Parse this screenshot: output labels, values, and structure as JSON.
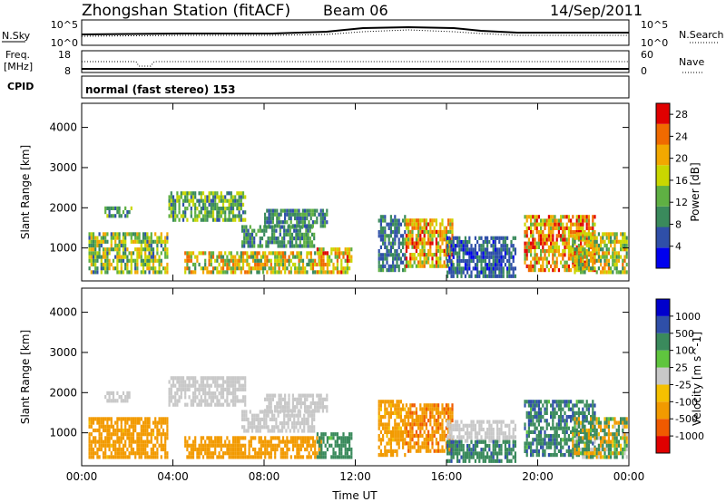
{
  "header": {
    "station": "Zhongshan Station (fitACF)",
    "beam": "Beam 06",
    "date": "14/Sep/2011"
  },
  "aux_panels": {
    "nsky_label": "N.Sky",
    "nsearch_label": "N.Search",
    "nsky_ticks": [
      "10^5",
      "10^0"
    ],
    "nsearch_ticks": [
      "10^5",
      "10^0"
    ],
    "freq_label": "Freq.",
    "freq_unit": "[MHz]",
    "freq_ticks": [
      "18",
      "8"
    ],
    "nave_label": "Nave",
    "nave_ticks": [
      "60",
      "0"
    ],
    "cpid_label": "CPID",
    "cpid_text": "normal (fast stereo) 153"
  },
  "colors": {
    "power_scale": [
      "#0000ee",
      "#2f4fa8",
      "#3a8a5c",
      "#5fb043",
      "#c9d700",
      "#f2a800",
      "#f06a00",
      "#e00000"
    ],
    "velocity_scale": [
      "#e00000",
      "#f05a00",
      "#f29a00",
      "#f5c000",
      "#c8c8c8",
      "#5fc53e",
      "#3a8a5c",
      "#2f4fa8",
      "#0000cc"
    ]
  },
  "chart_data": [
    {
      "type": "heatmap",
      "name": "power",
      "ylabel": "Slant Range [km]",
      "yticks": [
        1000,
        2000,
        3000,
        4000
      ],
      "ylim": [
        180,
        4600
      ],
      "xticks": [
        "00:00",
        "04:00",
        "08:00",
        "12:00",
        "16:00",
        "20:00",
        "00:00"
      ],
      "xlim_hours": [
        0,
        24
      ],
      "colorbar_label": "Power [dB]",
      "colorbar_ticks": [
        4,
        8,
        12,
        16,
        20,
        24,
        28
      ],
      "colorbar_range": [
        0,
        30
      ],
      "regions": [
        {
          "h0": 0.3,
          "h1": 3.8,
          "r0": 350,
          "r1": 1350,
          "v0": 6,
          "v1": 22
        },
        {
          "h0": 1.0,
          "h1": 2.2,
          "r0": 1750,
          "r1": 1980,
          "v0": 6,
          "v1": 16
        },
        {
          "h0": 3.8,
          "h1": 7.2,
          "r0": 1650,
          "r1": 2350,
          "v0": 6,
          "v1": 18
        },
        {
          "h0": 4.5,
          "h1": 10.5,
          "r0": 350,
          "r1": 900,
          "v0": 8,
          "v1": 26
        },
        {
          "h0": 7.0,
          "h1": 10.2,
          "r0": 1000,
          "r1": 1500,
          "v0": 5,
          "v1": 14
        },
        {
          "h0": 8.0,
          "h1": 10.8,
          "r0": 1500,
          "r1": 1950,
          "v0": 5,
          "v1": 14
        },
        {
          "h0": 10.3,
          "h1": 11.8,
          "r0": 350,
          "r1": 950,
          "v0": 12,
          "v1": 28
        },
        {
          "h0": 13.0,
          "h1": 14.2,
          "r0": 400,
          "r1": 1800,
          "v0": 4,
          "v1": 12
        },
        {
          "h0": 14.2,
          "h1": 16.3,
          "r0": 500,
          "r1": 1650,
          "v0": 12,
          "v1": 28
        },
        {
          "h0": 16.0,
          "h1": 19.0,
          "r0": 250,
          "r1": 1250,
          "v0": 3,
          "v1": 10
        },
        {
          "h0": 19.4,
          "h1": 22.5,
          "r0": 400,
          "r1": 1750,
          "v0": 12,
          "v1": 30
        },
        {
          "h0": 21.5,
          "h1": 23.9,
          "r0": 350,
          "r1": 1350,
          "v0": 8,
          "v1": 24
        }
      ]
    },
    {
      "type": "heatmap",
      "name": "velocity",
      "ylabel": "Slant Range [km]",
      "yticks": [
        1000,
        2000,
        3000,
        4000
      ],
      "ylim": [
        180,
        4600
      ],
      "xticks": [
        "00:00",
        "04:00",
        "08:00",
        "12:00",
        "16:00",
        "20:00",
        "00:00"
      ],
      "xlim_hours": [
        0,
        24
      ],
      "xlabel": "Time UT",
      "colorbar_label": "Velocity [m s^-1]",
      "colorbar_ticks": [
        "1000",
        "500",
        "100",
        "25",
        "-25",
        "-100",
        "-500",
        "-1000"
      ],
      "colorbar_range": [
        -1200,
        1200
      ],
      "regions": [
        {
          "h0": 0.3,
          "h1": 3.8,
          "r0": 350,
          "r1": 1350,
          "v0": -450,
          "v1": -90
        },
        {
          "h0": 1.0,
          "h1": 2.2,
          "r0": 1750,
          "r1": 1980,
          "v0": -10,
          "v1": 10
        },
        {
          "h0": 3.8,
          "h1": 7.2,
          "r0": 1650,
          "r1": 2350,
          "v0": -10,
          "v1": 10
        },
        {
          "h0": 4.5,
          "h1": 10.5,
          "r0": 350,
          "r1": 900,
          "v0": -450,
          "v1": -100
        },
        {
          "h0": 7.0,
          "h1": 10.2,
          "r0": 1000,
          "r1": 1500,
          "v0": -10,
          "v1": 10
        },
        {
          "h0": 8.0,
          "h1": 10.8,
          "r0": 1500,
          "r1": 1950,
          "v0": -10,
          "v1": 10
        },
        {
          "h0": 10.3,
          "h1": 11.8,
          "r0": 350,
          "r1": 950,
          "v0": 80,
          "v1": 450
        },
        {
          "h0": 13.0,
          "h1": 14.2,
          "r0": 400,
          "r1": 1800,
          "v0": -300,
          "v1": -80
        },
        {
          "h0": 14.2,
          "h1": 16.3,
          "r0": 500,
          "r1": 1650,
          "v0": -650,
          "v1": -100
        },
        {
          "h0": 16.0,
          "h1": 19.0,
          "r0": 750,
          "r1": 1250,
          "v0": -10,
          "v1": 10
        },
        {
          "h0": 16.0,
          "h1": 19.0,
          "r0": 250,
          "r1": 750,
          "v0": 100,
          "v1": 600
        },
        {
          "h0": 19.4,
          "h1": 22.5,
          "r0": 400,
          "r1": 1750,
          "v0": 80,
          "v1": 700
        },
        {
          "h0": 21.5,
          "h1": 23.9,
          "r0": 350,
          "r1": 1350,
          "v0": -300,
          "v1": 400
        }
      ]
    }
  ]
}
